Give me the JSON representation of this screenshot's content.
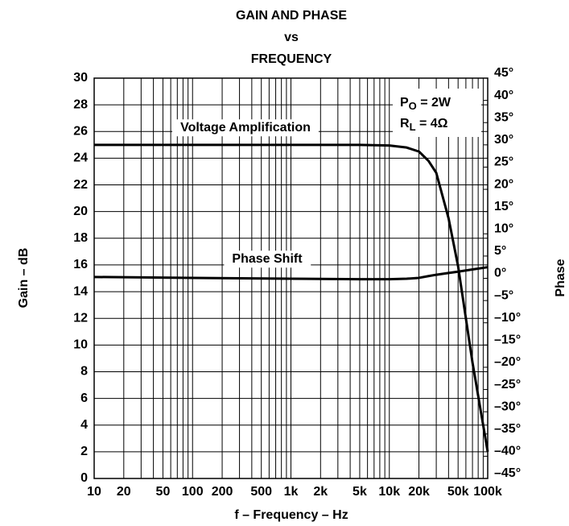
{
  "chart_data": {
    "type": "line",
    "title": [
      "GAIN AND PHASE",
      "vs",
      "FREQUENCY"
    ],
    "xlabel": "f – Frequency – Hz",
    "ylabel": "Gain – dB",
    "y2label": "Phase",
    "xscale": "log",
    "grid": true,
    "x": [
      10,
      100,
      1000,
      5000,
      10000,
      15000,
      20000,
      25000,
      30000,
      40000,
      50000,
      70000,
      100000
    ],
    "series": [
      {
        "name": "Voltage Amplification",
        "color": "#000000",
        "values": [
          25,
          25,
          25,
          25,
          24.95,
          24.8,
          24.5,
          23.8,
          22.9,
          19.5,
          15.9,
          8.7,
          2
        ]
      },
      {
        "name": "Phase Shift",
        "color": "#000000",
        "axis": "y2",
        "values": [
          0.3,
          0.1,
          -0.1,
          -0.2,
          -0.2,
          -0.1,
          0.1,
          0.5,
          0.8,
          1.2,
          1.5,
          2,
          2.5
        ]
      }
    ],
    "xlim": [
      10,
      100000
    ],
    "xticks": [
      10,
      20,
      50,
      100,
      200,
      500,
      {
        "value": 1000,
        "label": "1k"
      },
      {
        "value": 2000,
        "label": "2k"
      },
      {
        "value": 5000,
        "label": "5k"
      },
      {
        "value": 10000,
        "label": "10k"
      },
      {
        "value": 20000,
        "label": "20k"
      },
      {
        "value": 50000,
        "label": "50k"
      },
      {
        "value": 100000,
        "label": "100k"
      }
    ],
    "xminorticks": [
      30,
      40,
      60,
      70,
      80,
      90,
      300,
      400,
      600,
      700,
      800,
      900,
      3000,
      4000,
      6000,
      7000,
      8000,
      9000,
      30000,
      40000,
      60000,
      70000,
      80000,
      90000
    ],
    "ylim": [
      0,
      30
    ],
    "yticks": [
      0,
      2,
      4,
      6,
      8,
      10,
      12,
      14,
      16,
      18,
      20,
      22,
      24,
      26,
      28,
      30
    ],
    "y2lim": [
      -45,
      45
    ],
    "y2ticks": [
      {
        "value": -45,
        "label": "–45°"
      },
      {
        "value": -40,
        "label": "–40°"
      },
      {
        "value": -35,
        "label": "–35°"
      },
      {
        "value": -30,
        "label": "–30°"
      },
      {
        "value": -25,
        "label": "–25°"
      },
      {
        "value": -20,
        "label": "–20°"
      },
      {
        "value": -15,
        "label": "–15°"
      },
      {
        "value": -10,
        "label": "–10°"
      },
      {
        "value": -5,
        "label": "–5°"
      },
      {
        "value": 0,
        "label": "0°"
      },
      {
        "value": 5,
        "label": "5°"
      },
      {
        "value": 10,
        "label": "10°"
      },
      {
        "value": 15,
        "label": "15°"
      },
      {
        "value": 20,
        "label": "20°"
      },
      {
        "value": 25,
        "label": "25°"
      },
      {
        "value": 30,
        "label": "30°"
      },
      {
        "value": 35,
        "label": "35°"
      },
      {
        "value": 40,
        "label": "40°"
      },
      {
        "value": 45,
        "label": "45°"
      }
    ],
    "conditions": [
      {
        "main": "P",
        "sub": "O",
        "rest": " = 2W"
      },
      {
        "main": "R",
        "sub": "L",
        "rest": " = 4Ω"
      }
    ]
  }
}
